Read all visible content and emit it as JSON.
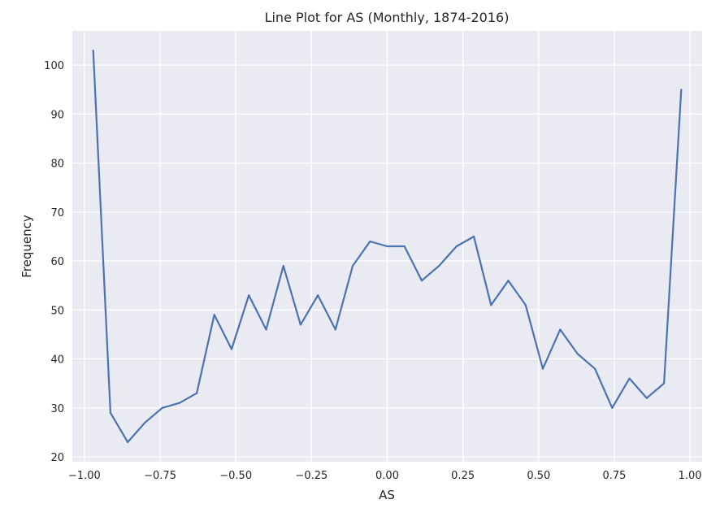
{
  "chart_data": {
    "type": "line",
    "title": "Line Plot for AS (Monthly, 1874-2016)",
    "xlabel": "AS",
    "ylabel": "Frequency",
    "xlim": [
      -1.04,
      1.04
    ],
    "ylim": [
      19,
      107
    ],
    "grid": true,
    "background": "#eaeaf2",
    "line_color": "#4c72b0",
    "x_ticks": [
      -1.0,
      -0.75,
      -0.5,
      -0.25,
      0.0,
      0.25,
      0.5,
      0.75,
      1.0
    ],
    "x_tick_labels": [
      "−1.00",
      "−0.75",
      "−0.50",
      "−0.25",
      "0.00",
      "0.25",
      "0.50",
      "0.75",
      "1.00"
    ],
    "y_ticks": [
      20,
      30,
      40,
      50,
      60,
      70,
      80,
      90,
      100
    ],
    "y_tick_labels": [
      "20",
      "30",
      "40",
      "50",
      "60",
      "70",
      "80",
      "90",
      "100"
    ],
    "x": [
      -0.971,
      -0.914,
      -0.857,
      -0.8,
      -0.743,
      -0.686,
      -0.629,
      -0.571,
      -0.514,
      -0.457,
      -0.4,
      -0.343,
      -0.286,
      -0.229,
      -0.171,
      -0.114,
      -0.057,
      0.0,
      0.057,
      0.114,
      0.171,
      0.229,
      0.286,
      0.343,
      0.4,
      0.457,
      0.514,
      0.571,
      0.629,
      0.686,
      0.743,
      0.8,
      0.857,
      0.914,
      0.971
    ],
    "series": [
      {
        "values": [
          103,
          29,
          23,
          27,
          30,
          31,
          33,
          49,
          42,
          53,
          46,
          59,
          47,
          53,
          46,
          59,
          64,
          63,
          63,
          56,
          59,
          63,
          65,
          51,
          56,
          51,
          38,
          46,
          41,
          38,
          30,
          36,
          32,
          35,
          95
        ]
      }
    ]
  }
}
